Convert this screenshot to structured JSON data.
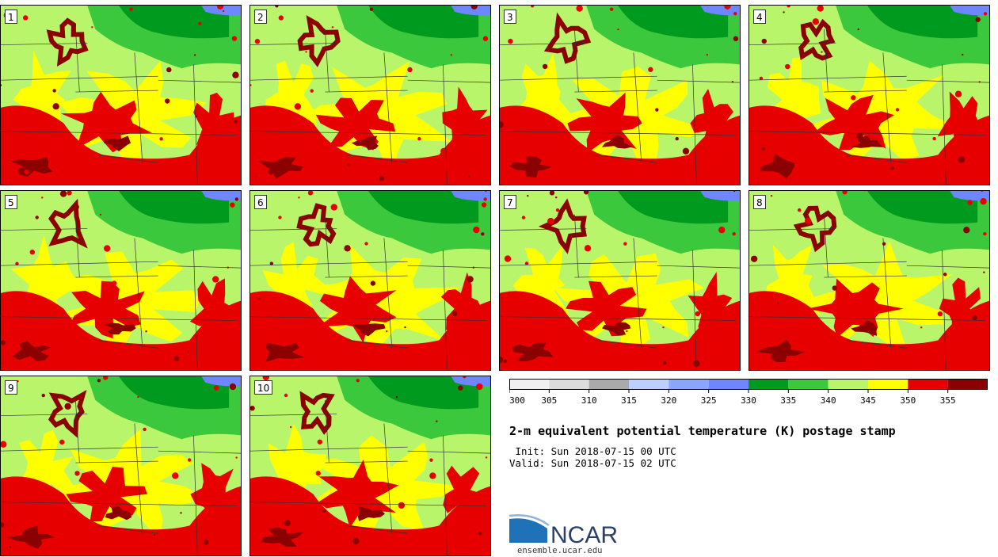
{
  "panels": [
    {
      "label": "1"
    },
    {
      "label": "2"
    },
    {
      "label": "3"
    },
    {
      "label": "4"
    },
    {
      "label": "5"
    },
    {
      "label": "6"
    },
    {
      "label": "7"
    },
    {
      "label": "8"
    },
    {
      "label": "9"
    },
    {
      "label": "10"
    }
  ],
  "colorbar": {
    "ticks": [
      "300",
      "305",
      "310",
      "315",
      "320",
      "325",
      "330",
      "335",
      "340",
      "345",
      "350",
      "355"
    ],
    "colors": [
      "#f0f0f0",
      "#dcdcdc",
      "#aaaaaa",
      "#bccfff",
      "#8aa6ff",
      "#6e86ff",
      "#009a1f",
      "#3cc83c",
      "#b8f56a",
      "#ffff00",
      "#e60000",
      "#8b0000"
    ]
  },
  "title": "2-m equivalent potential temperature (K) postage stamp",
  "init": " Init: Sun 2018-07-15 00 UTC",
  "valid": "Valid: Sun 2018-07-15 02 UTC",
  "logo": {
    "name": "NCAR",
    "url": "ensemble.ucar.edu"
  }
}
